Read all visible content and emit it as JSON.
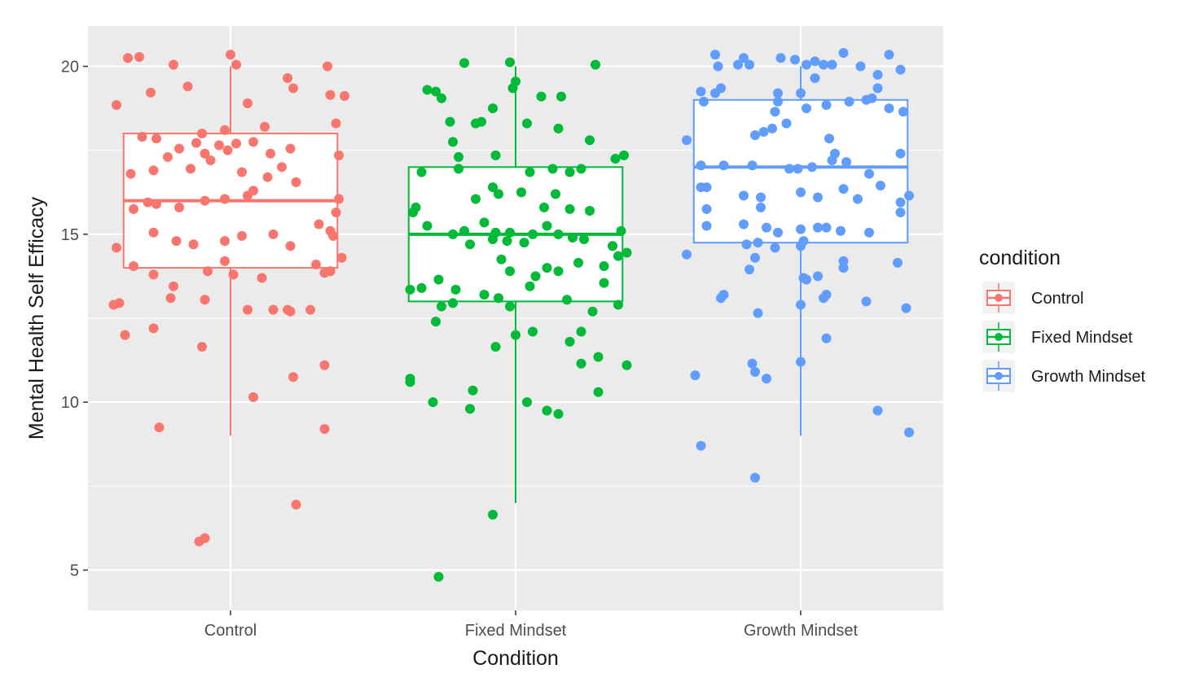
{
  "chart_data": {
    "type": "boxplot",
    "xlabel": "Condition",
    "ylabel": "Mental Health Self Efficacy",
    "ylim": [
      3.8,
      21.2
    ],
    "yticks": [
      5,
      10,
      15,
      20
    ],
    "categories": [
      "Control",
      "Fixed Mindset",
      "Growth Mindset"
    ],
    "grid": true,
    "legend": {
      "title": "condition",
      "position": "right"
    },
    "series": [
      {
        "name": "Control",
        "color": "#F8766D",
        "box": {
          "min": 9,
          "q1": 14,
          "median": 16,
          "q3": 18,
          "max": 20
        },
        "points": [
          [
            -0.4,
            18.85
          ],
          [
            -0.36,
            20.25
          ],
          [
            -0.32,
            20.28
          ],
          [
            -0.28,
            19.22
          ],
          [
            -0.2,
            20.05
          ],
          [
            -0.15,
            19.4
          ],
          [
            0.0,
            20.35
          ],
          [
            0.02,
            20.05
          ],
          [
            0.2,
            19.65
          ],
          [
            0.22,
            19.35
          ],
          [
            0.35,
            19.15
          ],
          [
            0.34,
            20.0
          ],
          [
            0.4,
            19.12
          ],
          [
            -0.1,
            18.0
          ],
          [
            -0.02,
            18.1
          ],
          [
            0.06,
            18.9
          ],
          [
            0.12,
            18.2
          ],
          [
            0.37,
            18.3
          ],
          [
            -0.31,
            17.9
          ],
          [
            -0.26,
            17.85
          ],
          [
            -0.18,
            17.55
          ],
          [
            -0.12,
            17.72
          ],
          [
            -0.09,
            17.4
          ],
          [
            -0.04,
            17.65
          ],
          [
            -0.01,
            17.5
          ],
          [
            0.02,
            17.7
          ],
          [
            0.08,
            17.75
          ],
          [
            0.14,
            17.4
          ],
          [
            0.21,
            17.55
          ],
          [
            0.38,
            17.35
          ],
          [
            -0.35,
            16.8
          ],
          [
            -0.27,
            16.9
          ],
          [
            -0.22,
            17.3
          ],
          [
            -0.14,
            16.95
          ],
          [
            -0.07,
            17.2
          ],
          [
            0.04,
            16.85
          ],
          [
            0.13,
            16.7
          ],
          [
            0.18,
            17.0
          ],
          [
            0.23,
            16.55
          ],
          [
            0.08,
            16.3
          ],
          [
            -0.29,
            15.95
          ],
          [
            -0.26,
            15.9
          ],
          [
            -0.18,
            15.8
          ],
          [
            -0.09,
            16.0
          ],
          [
            -0.02,
            16.05
          ],
          [
            0.06,
            16.15
          ],
          [
            0.38,
            16.05
          ],
          [
            0.37,
            15.65
          ],
          [
            -0.34,
            15.75
          ],
          [
            -0.27,
            15.05
          ],
          [
            -0.19,
            14.8
          ],
          [
            -0.13,
            14.7
          ],
          [
            -0.02,
            14.8
          ],
          [
            0.04,
            14.95
          ],
          [
            0.15,
            15.0
          ],
          [
            0.21,
            14.65
          ],
          [
            0.31,
            15.3
          ],
          [
            0.35,
            15.1
          ],
          [
            0.36,
            14.95
          ],
          [
            0.39,
            14.3
          ],
          [
            -0.4,
            14.6
          ],
          [
            -0.34,
            14.05
          ],
          [
            -0.27,
            13.8
          ],
          [
            -0.2,
            13.45
          ],
          [
            -0.08,
            13.9
          ],
          [
            -0.02,
            14.2
          ],
          [
            0.01,
            13.8
          ],
          [
            0.11,
            13.7
          ],
          [
            0.3,
            14.1
          ],
          [
            0.33,
            13.85
          ],
          [
            0.35,
            13.9
          ],
          [
            -0.39,
            12.95
          ],
          [
            -0.41,
            12.9
          ],
          [
            -0.21,
            13.1
          ],
          [
            -0.09,
            13.05
          ],
          [
            0.06,
            12.75
          ],
          [
            0.15,
            12.75
          ],
          [
            0.2,
            12.75
          ],
          [
            0.21,
            12.7
          ],
          [
            0.28,
            12.75
          ],
          [
            -0.37,
            12.0
          ],
          [
            -0.27,
            12.2
          ],
          [
            -0.1,
            11.65
          ],
          [
            0.22,
            10.75
          ],
          [
            0.33,
            11.1
          ],
          [
            0.08,
            10.15
          ],
          [
            -0.25,
            9.25
          ],
          [
            0.33,
            9.2
          ],
          [
            0.23,
            6.95
          ],
          [
            -0.11,
            5.85
          ],
          [
            -0.09,
            5.95
          ]
        ]
      },
      {
        "name": "Fixed Mindset",
        "color": "#00BA38",
        "box": {
          "min": 7,
          "q1": 13,
          "median": 15,
          "q3": 17,
          "max": 20
        },
        "points": [
          [
            -0.28,
            19.25
          ],
          [
            -0.26,
            19.05
          ],
          [
            -0.18,
            20.1
          ],
          [
            -0.02,
            20.12
          ],
          [
            -0.01,
            19.35
          ],
          [
            0.0,
            19.55
          ],
          [
            0.09,
            19.1
          ],
          [
            0.16,
            19.1
          ],
          [
            0.28,
            20.05
          ],
          [
            -0.31,
            19.3
          ],
          [
            -0.23,
            18.35
          ],
          [
            -0.14,
            18.3
          ],
          [
            -0.12,
            18.35
          ],
          [
            -0.08,
            18.75
          ],
          [
            0.04,
            18.3
          ],
          [
            0.15,
            18.15
          ],
          [
            0.26,
            17.8
          ],
          [
            -0.22,
            17.75
          ],
          [
            -0.2,
            17.3
          ],
          [
            -0.07,
            17.35
          ],
          [
            0.35,
            17.25
          ],
          [
            0.38,
            17.35
          ],
          [
            -0.33,
            16.85
          ],
          [
            -0.2,
            16.95
          ],
          [
            0.05,
            16.85
          ],
          [
            0.13,
            16.95
          ],
          [
            0.19,
            16.85
          ],
          [
            0.23,
            16.95
          ],
          [
            -0.08,
            16.4
          ],
          [
            -0.06,
            16.2
          ],
          [
            -0.14,
            16.05
          ],
          [
            0.02,
            16.25
          ],
          [
            0.1,
            15.8
          ],
          [
            0.14,
            16.2
          ],
          [
            0.19,
            15.75
          ],
          [
            0.26,
            15.7
          ],
          [
            -0.36,
            15.65
          ],
          [
            -0.35,
            15.8
          ],
          [
            -0.31,
            15.25
          ],
          [
            -0.22,
            15.0
          ],
          [
            -0.18,
            15.1
          ],
          [
            -0.11,
            15.35
          ],
          [
            -0.08,
            14.85
          ],
          [
            -0.07,
            15.05
          ],
          [
            -0.03,
            14.8
          ],
          [
            -0.02,
            15.05
          ],
          [
            0.03,
            14.75
          ],
          [
            0.06,
            15.0
          ],
          [
            0.11,
            15.25
          ],
          [
            0.15,
            15.0
          ],
          [
            0.2,
            14.9
          ],
          [
            0.24,
            14.85
          ],
          [
            0.34,
            14.65
          ],
          [
            0.37,
            15.1
          ],
          [
            0.36,
            14.35
          ],
          [
            0.39,
            14.45
          ],
          [
            -0.16,
            14.7
          ],
          [
            -0.05,
            14.25
          ],
          [
            -0.02,
            13.9
          ],
          [
            0.07,
            13.75
          ],
          [
            0.11,
            14.0
          ],
          [
            0.15,
            13.9
          ],
          [
            0.22,
            14.15
          ],
          [
            0.31,
            14.05
          ],
          [
            -0.27,
            13.65
          ],
          [
            -0.21,
            13.35
          ],
          [
            -0.11,
            13.2
          ],
          [
            -0.06,
            13.1
          ],
          [
            0.05,
            13.45
          ],
          [
            0.18,
            13.05
          ],
          [
            0.31,
            13.55
          ],
          [
            -0.37,
            13.35
          ],
          [
            -0.33,
            13.4
          ],
          [
            -0.26,
            12.85
          ],
          [
            -0.22,
            12.95
          ],
          [
            -0.02,
            12.85
          ],
          [
            0.27,
            12.7
          ],
          [
            0.36,
            12.9
          ],
          [
            -0.28,
            12.4
          ],
          [
            0.06,
            12.1
          ],
          [
            0.23,
            12.1
          ],
          [
            0.19,
            11.8
          ],
          [
            0.29,
            11.35
          ],
          [
            0.39,
            11.1
          ],
          [
            0.23,
            11.15
          ],
          [
            -0.07,
            11.65
          ],
          [
            -0.37,
            10.7
          ],
          [
            -0.37,
            10.6
          ],
          [
            -0.15,
            10.35
          ],
          [
            0.29,
            10.3
          ],
          [
            -0.29,
            10.0
          ],
          [
            -0.16,
            9.8
          ],
          [
            0.04,
            10.0
          ],
          [
            0.11,
            9.75
          ],
          [
            0.15,
            9.65
          ],
          [
            -0.08,
            6.65
          ],
          [
            -0.27,
            4.8
          ],
          [
            0.0,
            12.0
          ]
        ]
      },
      {
        "name": "Growth Mindset",
        "color": "#619CFF",
        "box": {
          "min": 9,
          "q1": 14.75,
          "median": 17,
          "q3": 19,
          "max": 20
        },
        "points": [
          [
            -0.3,
            20.35
          ],
          [
            -0.22,
            20.05
          ],
          [
            -0.18,
            20.05
          ],
          [
            -0.29,
            20.0
          ],
          [
            -0.02,
            20.2
          ],
          [
            -0.2,
            20.25
          ],
          [
            -0.07,
            20.25
          ],
          [
            0.02,
            20.05
          ],
          [
            0.05,
            20.15
          ],
          [
            0.08,
            20.05
          ],
          [
            0.11,
            20.05
          ],
          [
            0.15,
            20.4
          ],
          [
            0.21,
            20.0
          ],
          [
            0.31,
            20.35
          ],
          [
            0.35,
            19.9
          ],
          [
            0.27,
            19.75
          ],
          [
            0.27,
            19.35
          ],
          [
            0.23,
            19.0
          ],
          [
            0.05,
            19.65
          ],
          [
            -0.35,
            19.25
          ],
          [
            -0.34,
            18.95
          ],
          [
            -0.28,
            19.35
          ],
          [
            -0.3,
            19.2
          ],
          [
            -0.08,
            19.2
          ],
          [
            -0.08,
            18.95
          ],
          [
            0.0,
            19.2
          ],
          [
            0.02,
            18.75
          ],
          [
            0.09,
            18.85
          ],
          [
            0.17,
            18.95
          ],
          [
            0.25,
            19.05
          ],
          [
            0.31,
            18.75
          ],
          [
            0.36,
            18.65
          ],
          [
            -0.09,
            18.65
          ],
          [
            -0.05,
            18.3
          ],
          [
            -0.1,
            18.15
          ],
          [
            -0.13,
            18.05
          ],
          [
            -0.16,
            17.95
          ],
          [
            0.1,
            17.85
          ],
          [
            0.12,
            17.4
          ],
          [
            0.16,
            17.15
          ],
          [
            -0.4,
            17.8
          ],
          [
            -0.35,
            17.05
          ],
          [
            -0.27,
            17.05
          ],
          [
            -0.17,
            17.05
          ],
          [
            -0.04,
            16.95
          ],
          [
            -0.01,
            16.95
          ],
          [
            0.04,
            17.0
          ],
          [
            0.11,
            17.2
          ],
          [
            0.24,
            16.8
          ],
          [
            0.35,
            17.4
          ],
          [
            -0.35,
            16.4
          ],
          [
            -0.33,
            16.4
          ],
          [
            -0.2,
            16.15
          ],
          [
            -0.14,
            16.1
          ],
          [
            0.0,
            16.25
          ],
          [
            0.06,
            16.1
          ],
          [
            0.15,
            16.35
          ],
          [
            0.2,
            16.05
          ],
          [
            0.28,
            16.45
          ],
          [
            0.35,
            15.95
          ],
          [
            0.38,
            16.15
          ],
          [
            -0.33,
            15.75
          ],
          [
            -0.33,
            15.25
          ],
          [
            -0.2,
            15.3
          ],
          [
            -0.14,
            15.8
          ],
          [
            -0.12,
            15.2
          ],
          [
            -0.08,
            15.05
          ],
          [
            0.0,
            15.15
          ],
          [
            0.06,
            15.2
          ],
          [
            0.09,
            15.2
          ],
          [
            0.14,
            15.1
          ],
          [
            0.24,
            15.05
          ],
          [
            0.35,
            15.65
          ],
          [
            -0.4,
            14.4
          ],
          [
            -0.19,
            14.7
          ],
          [
            -0.15,
            14.75
          ],
          [
            -0.16,
            14.3
          ],
          [
            -0.09,
            14.6
          ],
          [
            0.0,
            14.65
          ],
          [
            0.01,
            14.8
          ],
          [
            0.15,
            14.0
          ],
          [
            0.15,
            14.2
          ],
          [
            0.34,
            14.15
          ],
          [
            -0.18,
            13.95
          ],
          [
            0.01,
            13.7
          ],
          [
            0.02,
            13.65
          ],
          [
            0.06,
            13.75
          ],
          [
            0.08,
            13.1
          ],
          [
            0.09,
            13.2
          ],
          [
            0.23,
            13.0
          ],
          [
            -0.28,
            13.1
          ],
          [
            -0.27,
            13.2
          ],
          [
            -0.15,
            12.65
          ],
          [
            0.0,
            12.9
          ],
          [
            0.37,
            12.8
          ],
          [
            0.09,
            11.9
          ],
          [
            0.0,
            11.2
          ],
          [
            -0.17,
            11.15
          ],
          [
            -0.16,
            10.9
          ],
          [
            -0.12,
            10.7
          ],
          [
            -0.37,
            10.8
          ],
          [
            0.27,
            9.75
          ],
          [
            0.38,
            9.1
          ],
          [
            -0.35,
            8.7
          ],
          [
            -0.16,
            7.75
          ]
        ]
      }
    ]
  }
}
